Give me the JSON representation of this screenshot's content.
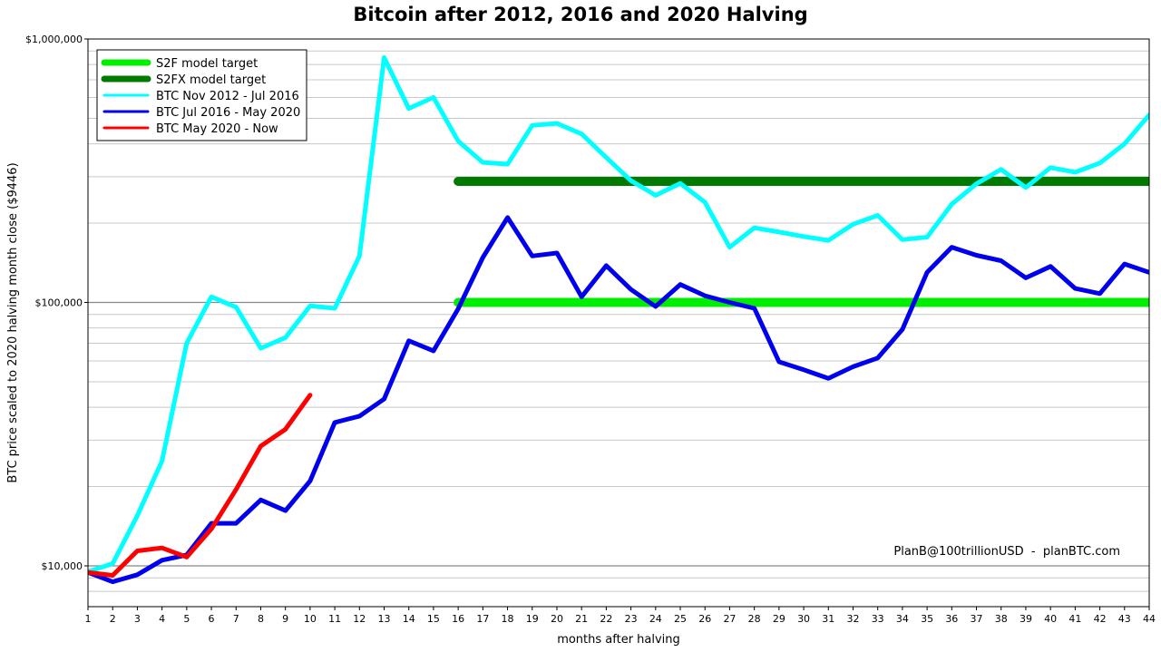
{
  "chart_data": {
    "type": "line",
    "title": "Bitcoin after 2012, 2016 and 2020 Halving",
    "xlabel": "months after halving",
    "ylabel": "BTC price scaled to 2020 halving month close ($9446)",
    "y_scale": "log",
    "ylim": [
      7000,
      1000000
    ],
    "xlim": [
      1,
      44
    ],
    "x_ticks": [
      1,
      2,
      3,
      4,
      5,
      6,
      7,
      8,
      9,
      10,
      11,
      12,
      13,
      14,
      15,
      16,
      17,
      18,
      19,
      20,
      21,
      22,
      23,
      24,
      25,
      26,
      27,
      28,
      29,
      30,
      31,
      32,
      33,
      34,
      35,
      36,
      37,
      38,
      39,
      40,
      41,
      42,
      43,
      44
    ],
    "y_tick_labels": [
      {
        "value": 10000,
        "label": "$10,000"
      },
      {
        "value": 100000,
        "label": "$100,000"
      },
      {
        "value": 1000000,
        "label": "$1,000,000"
      }
    ],
    "grid": true,
    "legend_position": "top-left",
    "credit": "PlanB@100trillionUSD  -  planBTC.com",
    "series": [
      {
        "name": "S2F model target",
        "color": "#00ee00",
        "x": [
          16,
          44
        ],
        "y": [
          100000,
          100000
        ]
      },
      {
        "name": "S2FX model target",
        "color": "#007a00",
        "x": [
          16,
          44
        ],
        "y": [
          288000,
          288000
        ]
      },
      {
        "name": "BTC Nov 2012 - Jul 2016",
        "color": "#00ffff",
        "x": [
          1,
          2,
          3,
          4,
          5,
          6,
          7,
          8,
          9,
          10,
          11,
          12,
          13,
          14,
          15,
          16,
          17,
          18,
          19,
          20,
          21,
          22,
          23,
          24,
          25,
          26,
          27,
          28,
          29,
          30,
          31,
          32,
          33,
          34,
          35,
          36,
          37,
          38,
          39,
          40,
          41,
          42,
          43,
          44
        ],
        "y": [
          9500,
          10200,
          15500,
          25000,
          70000,
          105000,
          96000,
          67000,
          73500,
          97000,
          95000,
          150000,
          850000,
          545000,
          600000,
          410000,
          340000,
          335000,
          470000,
          478000,
          436000,
          355000,
          290000,
          255000,
          283000,
          240000,
          162000,
          192000,
          185000,
          178000,
          172000,
          198000,
          214000,
          173000,
          177000,
          236000,
          282000,
          320000,
          273000,
          325000,
          312000,
          338000,
          400000,
          515000
        ]
      },
      {
        "name": "BTC Jul 2016 - May 2020",
        "color": "#0000ee",
        "x": [
          1,
          2,
          3,
          4,
          5,
          6,
          7,
          8,
          9,
          10,
          11,
          12,
          13,
          14,
          15,
          16,
          17,
          18,
          19,
          20,
          21,
          22,
          23,
          24,
          25,
          26,
          27,
          28,
          29,
          30,
          31,
          32,
          33,
          34,
          35,
          36,
          37,
          38,
          39,
          40,
          41,
          42,
          43,
          44
        ],
        "y": [
          9446,
          8700,
          9250,
          10500,
          11000,
          14500,
          14500,
          17800,
          16200,
          21000,
          35000,
          37000,
          43000,
          71500,
          65500,
          94500,
          148000,
          210000,
          150000,
          154000,
          105000,
          138000,
          112000,
          96500,
          117000,
          106000,
          100000,
          95000,
          59500,
          55500,
          51500,
          57000,
          61500,
          79000,
          130000,
          162000,
          151000,
          144000,
          124000,
          137000,
          113000,
          108000,
          140000,
          130000
        ]
      },
      {
        "name": "BTC May 2020 - Now",
        "color": "#ff0000",
        "x": [
          1,
          2,
          3,
          4,
          5,
          6,
          7,
          8,
          9,
          10
        ],
        "y": [
          9446,
          9200,
          11400,
          11700,
          10800,
          13800,
          19500,
          28500,
          33000,
          44500
        ]
      }
    ]
  }
}
